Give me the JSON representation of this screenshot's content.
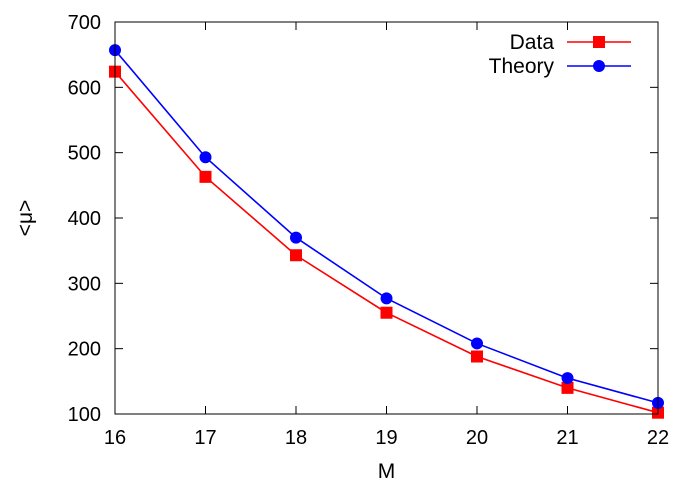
{
  "chart_data": {
    "type": "line",
    "xlabel": "M",
    "ylabel": "<μ>",
    "xlim": [
      16,
      22
    ],
    "ylim": [
      100,
      700
    ],
    "x_ticks": [
      16,
      17,
      18,
      19,
      20,
      21,
      22
    ],
    "y_ticks": [
      100,
      200,
      300,
      400,
      500,
      600,
      700
    ],
    "legend_position": "top-right",
    "grid": false,
    "x": [
      16,
      17,
      18,
      19,
      20,
      21,
      22
    ],
    "series": [
      {
        "name": "Data",
        "color": "#ff0000",
        "marker": "square",
        "values": [
          624,
          463,
          343,
          255,
          188,
          140,
          102
        ]
      },
      {
        "name": "Theory",
        "color": "#0000ff",
        "marker": "circle",
        "values": [
          657,
          493,
          370,
          277,
          208,
          155,
          117
        ]
      }
    ]
  }
}
